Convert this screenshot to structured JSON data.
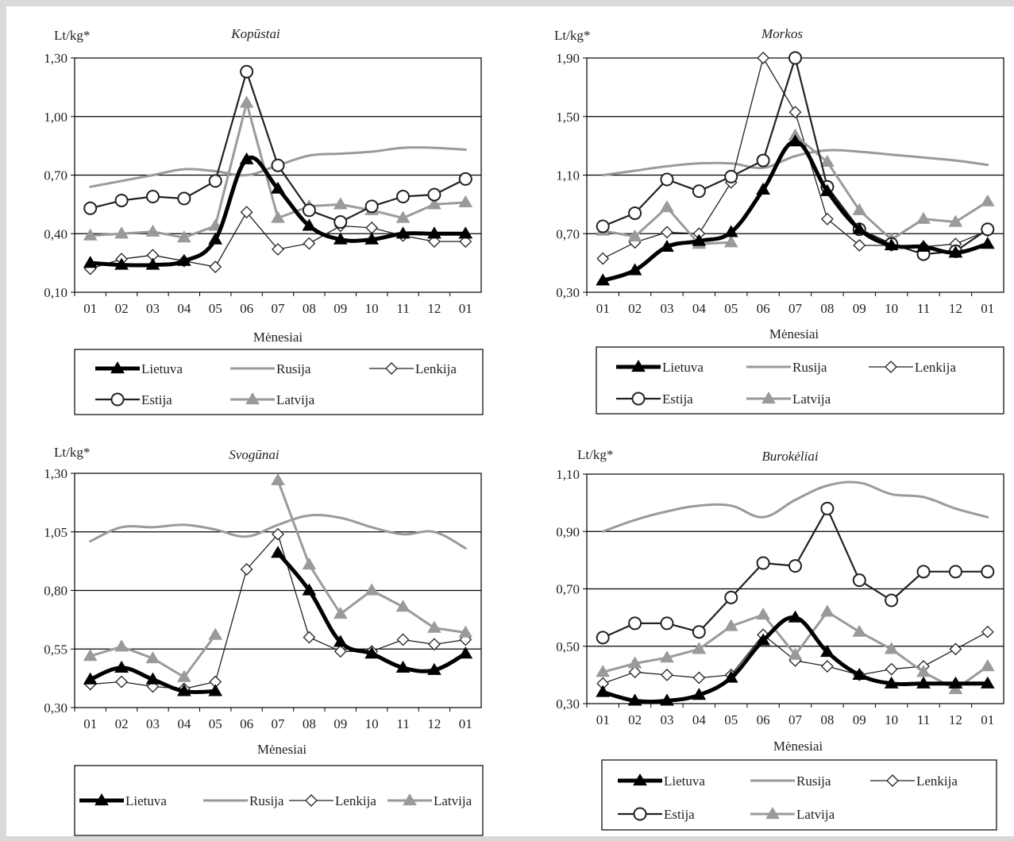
{
  "colors": {
    "lietuva": "#000000",
    "rusija": "#9a9a9a",
    "lenkija": "#222222",
    "estija": "#222222",
    "latvija": "#9a9a9a",
    "grid": "#000000"
  },
  "months": [
    "01",
    "02",
    "03",
    "04",
    "05",
    "06",
    "07",
    "08",
    "09",
    "10",
    "11",
    "12",
    "01"
  ],
  "chart_data": [
    {
      "type": "line",
      "title": "Kopūstai",
      "ylabel": "Lt/kg*",
      "xlabel": "Mėnesiai",
      "yticks": [
        "1,30",
        "1,00",
        "0,70",
        "0,40",
        "0,10"
      ],
      "ylim": [
        0.1,
        1.3
      ],
      "grid": true,
      "legend": "below",
      "categories": [
        "01",
        "02",
        "03",
        "04",
        "05",
        "06",
        "07",
        "08",
        "09",
        "10",
        "11",
        "12",
        "01"
      ],
      "series": [
        {
          "name": "Lietuva",
          "values": [
            0.25,
            0.24,
            0.24,
            0.26,
            0.37,
            0.78,
            0.63,
            0.44,
            0.37,
            0.37,
            0.4,
            0.4,
            0.4
          ]
        },
        {
          "name": "Rusija",
          "values": [
            0.64,
            0.67,
            0.7,
            0.73,
            0.72,
            0.7,
            0.75,
            0.8,
            0.81,
            0.82,
            0.84,
            0.84,
            0.83
          ]
        },
        {
          "name": "Lenkija",
          "values": [
            0.22,
            0.27,
            0.29,
            0.26,
            0.23,
            0.51,
            0.32,
            0.35,
            0.44,
            0.43,
            0.39,
            0.36,
            0.36
          ]
        },
        {
          "name": "Estija",
          "values": [
            0.53,
            0.57,
            0.59,
            0.58,
            0.67,
            1.23,
            0.75,
            0.52,
            0.46,
            0.54,
            0.59,
            0.6,
            0.68
          ]
        },
        {
          "name": "Latvija",
          "values": [
            0.39,
            0.4,
            0.41,
            0.38,
            0.44,
            1.07,
            0.48,
            0.54,
            0.55,
            0.52,
            0.48,
            0.55,
            0.56
          ]
        }
      ]
    },
    {
      "type": "line",
      "title": "Morkos",
      "ylabel": "Lt/kg*",
      "xlabel": "Mėnesiai",
      "yticks": [
        "1,90",
        "1,50",
        "1,10",
        "0,70",
        "0,30"
      ],
      "ylim": [
        0.3,
        1.9
      ],
      "grid": true,
      "legend": "below",
      "categories": [
        "01",
        "02",
        "03",
        "04",
        "05",
        "06",
        "07",
        "08",
        "09",
        "10",
        "11",
        "12",
        "01"
      ],
      "series": [
        {
          "name": "Lietuva",
          "values": [
            0.38,
            0.45,
            0.61,
            0.65,
            0.71,
            1.0,
            1.33,
            0.99,
            0.73,
            0.62,
            0.61,
            0.57,
            0.63
          ]
        },
        {
          "name": "Rusija",
          "values": [
            1.1,
            1.13,
            1.16,
            1.18,
            1.18,
            1.15,
            1.23,
            1.27,
            1.26,
            1.24,
            1.22,
            1.2,
            1.17
          ]
        },
        {
          "name": "Lenkija",
          "values": [
            0.53,
            0.64,
            0.71,
            0.7,
            1.05,
            1.9,
            1.53,
            0.8,
            0.62,
            0.62,
            0.61,
            0.63,
            0.72
          ]
        },
        {
          "name": "Estija",
          "values": [
            0.75,
            0.84,
            1.07,
            0.99,
            1.09,
            1.2,
            1.9,
            1.02,
            0.73,
            0.63,
            0.56,
            0.58,
            0.73
          ]
        },
        {
          "name": "Latvija",
          "values": [
            0.72,
            0.68,
            0.88,
            0.63,
            0.64,
            null,
            1.37,
            1.19,
            0.86,
            0.66,
            0.8,
            0.78,
            0.92
          ]
        }
      ]
    },
    {
      "type": "line",
      "title": "Svogūnai",
      "ylabel": "Lt/kg*",
      "xlabel": "Mėnesiai",
      "yticks": [
        "1,30",
        "1,05",
        "0,80",
        "0,55",
        "0,30"
      ],
      "ylim": [
        0.3,
        1.3
      ],
      "grid": true,
      "legend": "below",
      "categories": [
        "01",
        "02",
        "03",
        "04",
        "05",
        "06",
        "07",
        "08",
        "09",
        "10",
        "11",
        "12",
        "01"
      ],
      "series": [
        {
          "name": "Lietuva",
          "values": [
            0.42,
            0.47,
            0.42,
            0.37,
            0.37,
            null,
            0.96,
            0.8,
            0.58,
            0.53,
            0.47,
            0.46,
            0.53
          ]
        },
        {
          "name": "Rusija",
          "values": [
            1.01,
            1.07,
            1.07,
            1.08,
            1.06,
            1.03,
            1.08,
            1.12,
            1.11,
            1.07,
            1.04,
            1.05,
            0.98
          ]
        },
        {
          "name": "Lenkija",
          "values": [
            0.4,
            0.41,
            0.39,
            0.38,
            0.41,
            0.89,
            1.04,
            0.6,
            0.54,
            0.54,
            0.59,
            0.57,
            0.59
          ]
        },
        {
          "name": "Latvija",
          "values": [
            0.52,
            0.56,
            0.51,
            0.43,
            0.61,
            null,
            1.27,
            0.91,
            0.7,
            0.8,
            0.73,
            0.64,
            0.62
          ]
        }
      ]
    },
    {
      "type": "line",
      "title": "Burokėliai",
      "ylabel": "Lt/kg*",
      "xlabel": "Mėnesiai",
      "yticks": [
        "1,10",
        "0,90",
        "0,70",
        "0,50",
        "0,30"
      ],
      "ylim": [
        0.3,
        1.1
      ],
      "grid": true,
      "legend": "below",
      "categories": [
        "01",
        "02",
        "03",
        "04",
        "05",
        "06",
        "07",
        "08",
        "09",
        "10",
        "11",
        "12",
        "01"
      ],
      "series": [
        {
          "name": "Lietuva",
          "values": [
            0.34,
            0.31,
            0.31,
            0.33,
            0.39,
            0.52,
            0.6,
            0.48,
            0.4,
            0.37,
            0.37,
            0.37,
            0.37
          ]
        },
        {
          "name": "Rusija",
          "values": [
            0.9,
            0.94,
            0.97,
            0.99,
            0.99,
            0.95,
            1.01,
            1.06,
            1.07,
            1.03,
            1.02,
            0.98,
            0.95
          ]
        },
        {
          "name": "Lenkija",
          "values": [
            0.37,
            0.41,
            0.4,
            0.39,
            0.4,
            0.54,
            0.45,
            0.43,
            0.4,
            0.42,
            0.43,
            0.49,
            0.55
          ]
        },
        {
          "name": "Estija",
          "values": [
            0.53,
            0.58,
            0.58,
            0.55,
            0.67,
            0.79,
            0.78,
            0.98,
            0.73,
            0.66,
            0.76,
            0.76,
            0.76
          ]
        },
        {
          "name": "Latvija",
          "values": [
            0.41,
            0.44,
            0.46,
            0.49,
            0.57,
            0.61,
            0.47,
            0.62,
            0.55,
            0.49,
            0.41,
            0.35,
            0.43
          ]
        }
      ]
    }
  ]
}
